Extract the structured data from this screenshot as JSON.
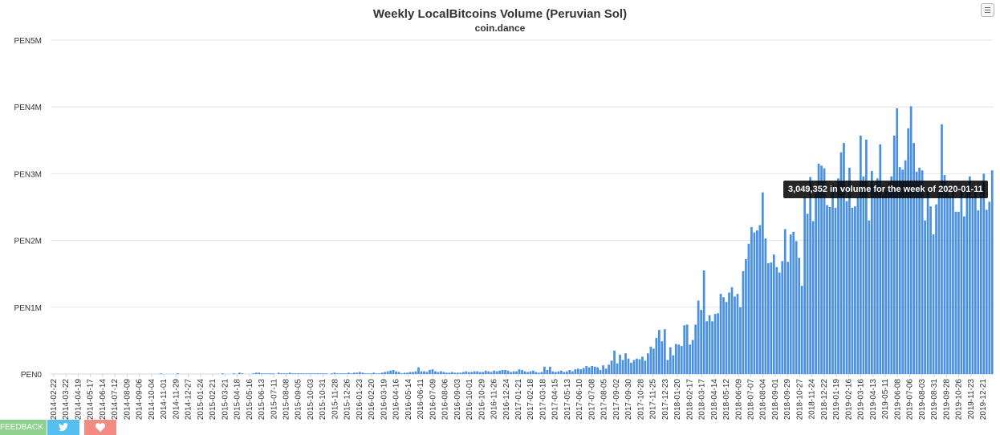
{
  "colors": {
    "bar": "#4a90e2",
    "grid": "#e6e6e6",
    "text": "#333333",
    "feedback": "#8fd18f",
    "twitter": "#55c0ef",
    "heart": "#f28b82"
  },
  "footer": {
    "feedback_label": "FEEDBACK",
    "twitter_icon": "twitter-icon",
    "heart_icon": "heart-icon"
  },
  "menu_icon": "hamburger-icon",
  "tooltip": {
    "text": "3,049,352 in volume for the week of 2020-01-11"
  },
  "chart_data": {
    "type": "bar",
    "title": "Weekly LocalBitcoins Volume (Peruvian Sol)",
    "subtitle": "coin.dance",
    "xlabel": "",
    "ylabel": "",
    "ylim": [
      0,
      5000000
    ],
    "y_ticks": [
      "PEN0",
      "PEN1M",
      "PEN2M",
      "PEN3M",
      "PEN4M",
      "PEN5M"
    ],
    "x_tick_labels": [
      "2014-02-22",
      "2014-03-22",
      "2014-04-19",
      "2014-05-17",
      "2014-06-14",
      "2014-07-12",
      "2014-08-09",
      "2014-09-06",
      "2014-10-04",
      "2014-11-01",
      "2014-11-29",
      "2014-12-27",
      "2015-01-24",
      "2015-02-21",
      "2015-03-21",
      "2015-04-18",
      "2015-05-16",
      "2015-06-13",
      "2015-07-11",
      "2015-08-08",
      "2015-09-05",
      "2015-10-03",
      "2015-10-31",
      "2015-11-28",
      "2015-12-26",
      "2016-01-23",
      "2016-02-20",
      "2016-03-19",
      "2016-04-16",
      "2016-05-14",
      "2016-06-11",
      "2016-07-09",
      "2016-08-06",
      "2016-09-03",
      "2016-10-01",
      "2016-10-29",
      "2016-11-26",
      "2016-12-24",
      "2017-01-21",
      "2017-02-18",
      "2017-03-18",
      "2017-04-15",
      "2017-05-13",
      "2017-06-10",
      "2017-07-08",
      "2017-08-05",
      "2017-09-02",
      "2017-09-30",
      "2017-10-28",
      "2017-11-25",
      "2017-12-23",
      "2018-01-20",
      "2018-02-17",
      "2018-03-17",
      "2018-04-14",
      "2018-05-12",
      "2018-06-09",
      "2018-07-07",
      "2018-08-04",
      "2018-09-01",
      "2018-09-29",
      "2018-10-27",
      "2018-11-24",
      "2018-12-22",
      "2019-01-19",
      "2019-02-16",
      "2019-03-16",
      "2019-04-13",
      "2019-05-11",
      "2019-06-08",
      "2019-07-06",
      "2019-08-03",
      "2019-08-31",
      "2019-09-28",
      "2019-10-26",
      "2019-11-23",
      "2019-12-21"
    ],
    "values": [
      0,
      0,
      0,
      0,
      0,
      0,
      0,
      0,
      0,
      0,
      0,
      0,
      0,
      0,
      0,
      0,
      0,
      0,
      0,
      0,
      0,
      0,
      0,
      0,
      0,
      0,
      0,
      0,
      0,
      0,
      0,
      0,
      0,
      0,
      0,
      0,
      0,
      0,
      0,
      10000,
      0,
      0,
      0,
      0,
      0,
      10000,
      0,
      0,
      0,
      0,
      0,
      0,
      0,
      0,
      0,
      0,
      0,
      0,
      0,
      0,
      0,
      10000,
      0,
      0,
      0,
      10000,
      0,
      20000,
      10000,
      0,
      0,
      0,
      10000,
      20000,
      20000,
      10000,
      10000,
      10000,
      10000,
      10000,
      0,
      20000,
      10000,
      10000,
      10000,
      20000,
      10000,
      10000,
      10000,
      10000,
      10000,
      10000,
      10000,
      10000,
      10000,
      10000,
      10000,
      10000,
      10000,
      0,
      10000,
      20000,
      10000,
      10000,
      10000,
      10000,
      20000,
      10000,
      20000,
      20000,
      30000,
      20000,
      10000,
      10000,
      10000,
      20000,
      10000,
      10000,
      20000,
      30000,
      40000,
      50000,
      60000,
      40000,
      30000,
      10000,
      20000,
      20000,
      30000,
      30000,
      40000,
      100000,
      40000,
      40000,
      30000,
      60000,
      70000,
      40000,
      30000,
      40000,
      30000,
      20000,
      20000,
      30000,
      20000,
      20000,
      20000,
      30000,
      40000,
      30000,
      30000,
      40000,
      40000,
      30000,
      30000,
      50000,
      40000,
      30000,
      50000,
      40000,
      50000,
      60000,
      60000,
      50000,
      30000,
      40000,
      40000,
      70000,
      60000,
      40000,
      30000,
      40000,
      50000,
      30000,
      20000,
      30000,
      110000,
      60000,
      110000,
      40000,
      30000,
      40000,
      50000,
      30000,
      40000,
      60000,
      40000,
      70000,
      80000,
      70000,
      90000,
      120000,
      100000,
      120000,
      110000,
      100000,
      60000,
      130000,
      80000,
      140000,
      200000,
      350000,
      160000,
      290000,
      210000,
      310000,
      230000,
      170000,
      210000,
      230000,
      220000,
      260000,
      200000,
      310000,
      410000,
      380000,
      540000,
      660000,
      490000,
      670000,
      210000,
      400000,
      280000,
      450000,
      440000,
      420000,
      730000,
      740000,
      440000,
      510000,
      740000,
      1100000,
      960000,
      1550000,
      790000,
      880000,
      790000,
      900000,
      910000,
      1200000,
      1150000,
      1080000,
      1220000,
      1300000,
      1160000,
      1200000,
      1000000,
      1540000,
      1720000,
      1950000,
      2200000,
      2120000,
      2150000,
      2230000,
      2720000,
      2030000,
      1660000,
      1670000,
      1790000,
      1600000,
      1520000,
      1690000,
      2170000,
      1680000,
      2090000,
      2130000,
      1990000,
      1740000,
      1320000,
      2650000,
      2400000,
      2950000,
      2290000,
      2700000,
      3150000,
      3120000,
      3080000,
      2530000,
      2500000,
      2840000,
      2490000,
      2930000,
      3320000,
      3460000,
      2590000,
      3090000,
      2490000,
      2510000,
      2650000,
      3570000,
      2960000,
      3510000,
      2300000,
      3040000,
      2830000,
      2930000,
      3440000,
      2690000,
      2740000,
      2870000,
      2960000,
      3570000,
      3980000,
      3100000,
      3060000,
      3200000,
      3680000,
      4010000,
      3460000,
      3030000,
      3090000,
      3050000,
      2300000,
      2750000,
      2510000,
      2090000,
      2540000,
      2730000,
      3740000,
      2980000,
      2720000,
      2670000,
      2810000,
      2430000,
      2430000,
      2800000,
      2360000,
      2740000,
      2960000,
      2650000,
      2820000,
      2450000,
      2810000,
      3000000,
      2460000,
      2580000,
      3050000
    ]
  }
}
